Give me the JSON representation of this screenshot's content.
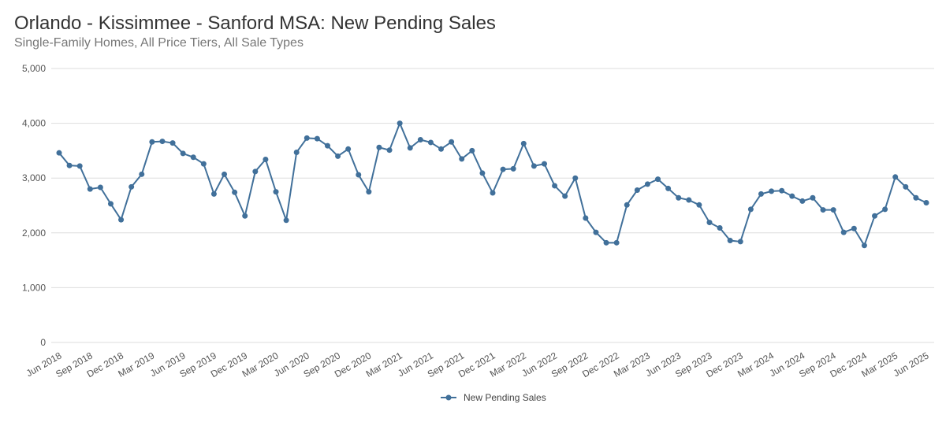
{
  "chart_data": {
    "type": "line",
    "title": "Orlando - Kissimmee - Sanford MSA: New Pending Sales",
    "subtitle": "Single-Family Homes, All Price Tiers, All Sale Types",
    "xlabel": "",
    "ylabel": "",
    "ylim": [
      0,
      5000
    ],
    "yticks": [
      0,
      1000,
      2000,
      3000,
      4000,
      5000
    ],
    "ytick_labels": [
      "0",
      "1,000",
      "2,000",
      "3,000",
      "4,000",
      "5,000"
    ],
    "grid": true,
    "legend_position": "bottom",
    "color": "#41709a",
    "x": [
      "Jun 2018",
      "Jul 2018",
      "Aug 2018",
      "Sep 2018",
      "Oct 2018",
      "Nov 2018",
      "Dec 2018",
      "Jan 2019",
      "Feb 2019",
      "Mar 2019",
      "Apr 2019",
      "May 2019",
      "Jun 2019",
      "Jul 2019",
      "Aug 2019",
      "Sep 2019",
      "Oct 2019",
      "Nov 2019",
      "Dec 2019",
      "Jan 2020",
      "Feb 2020",
      "Mar 2020",
      "Apr 2020",
      "May 2020",
      "Jun 2020",
      "Jul 2020",
      "Aug 2020",
      "Sep 2020",
      "Oct 2020",
      "Nov 2020",
      "Dec 2020",
      "Jan 2021",
      "Feb 2021",
      "Mar 2021",
      "Apr 2021",
      "May 2021",
      "Jun 2021",
      "Jul 2021",
      "Aug 2021",
      "Sep 2021",
      "Oct 2021",
      "Nov 2021",
      "Dec 2021",
      "Jan 2022",
      "Feb 2022",
      "Mar 2022",
      "Apr 2022",
      "May 2022",
      "Jun 2022",
      "Jul 2022",
      "Aug 2022",
      "Sep 2022",
      "Oct 2022",
      "Nov 2022",
      "Dec 2022",
      "Jan 2023",
      "Feb 2023",
      "Mar 2023",
      "Apr 2023",
      "May 2023",
      "Jun 2023",
      "Jul 2023",
      "Aug 2023",
      "Sep 2023",
      "Oct 2023",
      "Nov 2023",
      "Dec 2023",
      "Jan 2024",
      "Feb 2024",
      "Mar 2024",
      "Apr 2024",
      "May 2024",
      "Jun 2024",
      "Jul 2024",
      "Aug 2024",
      "Sep 2024",
      "Oct 2024",
      "Nov 2024",
      "Dec 2024",
      "Jan 2025",
      "Feb 2025",
      "Mar 2025",
      "Apr 2025",
      "May 2025",
      "Jun 2025"
    ],
    "xtick_labels": [
      "Jun 2018",
      "Sep 2018",
      "Dec 2018",
      "Mar 2019",
      "Jun 2019",
      "Sep 2019",
      "Dec 2019",
      "Mar 2020",
      "Jun 2020",
      "Sep 2020",
      "Dec 2020",
      "Mar 2021",
      "Jun 2021",
      "Sep 2021",
      "Dec 2021",
      "Mar 2022",
      "Jun 2022",
      "Sep 2022",
      "Dec 2022",
      "Mar 2023",
      "Jun 2023",
      "Sep 2023",
      "Dec 2023",
      "Mar 2024",
      "Jun 2024",
      "Sep 2024",
      "Dec 2024",
      "Mar 2025",
      "Jun 2025"
    ],
    "series": [
      {
        "name": "New Pending Sales",
        "values": [
          3460,
          3230,
          3220,
          2800,
          2830,
          2530,
          2240,
          2840,
          3070,
          3660,
          3670,
          3640,
          3450,
          3380,
          3260,
          2710,
          3070,
          2740,
          2310,
          3120,
          3340,
          2750,
          2230,
          3470,
          3730,
          3720,
          3590,
          3400,
          3530,
          3060,
          2750,
          3560,
          3510,
          4000,
          3550,
          3700,
          3650,
          3530,
          3660,
          3350,
          3500,
          3090,
          2730,
          3160,
          3170,
          3630,
          3220,
          3260,
          2860,
          2670,
          3000,
          2270,
          2010,
          1820,
          1820,
          2510,
          2780,
          2890,
          2980,
          2810,
          2640,
          2600,
          2510,
          2190,
          2090,
          1860,
          1840,
          2430,
          2710,
          2760,
          2770,
          2670,
          2580,
          2640,
          2420,
          2420,
          2010,
          2080,
          1770,
          2310,
          2430,
          3020,
          2840,
          2640,
          2550
        ]
      }
    ]
  }
}
